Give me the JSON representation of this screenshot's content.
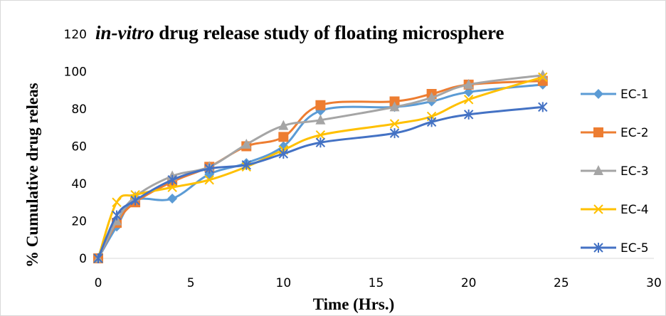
{
  "chart_data": {
    "type": "line",
    "title_italic": "in-vitro",
    "title_rest": " drug release study of floating microsphere",
    "xlabel": "Time (Hrs.)",
    "ylabel": "%  Cumulative drug releas",
    "xlim": [
      0,
      30
    ],
    "ylim": [
      0,
      120
    ],
    "xticks": [
      0,
      5,
      10,
      15,
      20,
      25,
      30
    ],
    "yticks": [
      0,
      20,
      40,
      60,
      80,
      100,
      120
    ],
    "grid": false,
    "legend_position": "right",
    "x": [
      0,
      1,
      2,
      4,
      6,
      8,
      10,
      12,
      16,
      18,
      20,
      24
    ],
    "series": [
      {
        "name": "EC-1",
        "marker": "diamond",
        "color": "#5b9bd5",
        "values": [
          0,
          17,
          31,
          32,
          45,
          51,
          60,
          79,
          81,
          84,
          89,
          93
        ]
      },
      {
        "name": "EC-2",
        "marker": "square",
        "color": "#ed7d31",
        "values": [
          0,
          19,
          30,
          41,
          49,
          60,
          65,
          82,
          84,
          88,
          93,
          95
        ]
      },
      {
        "name": "EC-3",
        "marker": "triangle",
        "color": "#a5a5a5",
        "values": [
          0,
          20,
          33,
          44,
          49,
          61,
          71,
          74,
          81,
          86,
          93,
          98
        ]
      },
      {
        "name": "EC-4",
        "marker": "x",
        "color": "#ffc000",
        "values": [
          0,
          30,
          34,
          38,
          42,
          49,
          58,
          66,
          72,
          76,
          85,
          97
        ]
      },
      {
        "name": "EC-5",
        "marker": "star",
        "color": "#4472c4",
        "values": [
          0,
          23,
          31,
          42,
          48,
          50,
          56,
          62,
          67,
          73,
          77,
          81
        ]
      }
    ]
  }
}
